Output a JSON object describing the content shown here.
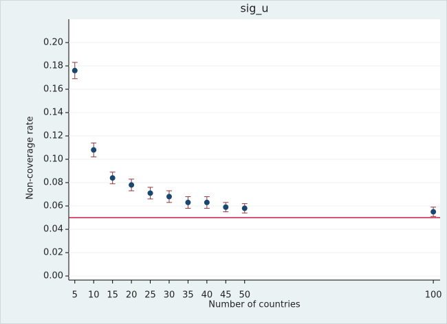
{
  "chart_data": {
    "type": "errorbar-scatter",
    "title": "sig_u",
    "x_label": "Number of countries",
    "y_label": "Non-coverage rate",
    "series": [
      {
        "color": "#1a476f",
        "error_color": "#90353b",
        "x": [
          5,
          10,
          15,
          20,
          25,
          30,
          35,
          40,
          45,
          50,
          100
        ],
        "values": [
          0.176,
          0.108,
          0.084,
          0.078,
          0.071,
          0.068,
          0.063,
          0.063,
          0.059,
          0.058,
          0.055
        ],
        "errors": [
          0.007,
          0.006,
          0.005,
          0.005,
          0.005,
          0.005,
          0.005,
          0.005,
          0.004,
          0.004,
          0.004
        ]
      }
    ],
    "reference_line": {
      "value": 0.05,
      "color": "#c10534"
    },
    "xlim": [
      3.4,
      101.8
    ],
    "xticks": [
      5,
      10,
      15,
      20,
      25,
      30,
      35,
      40,
      45,
      50,
      100
    ],
    "ylim": [
      -0.0035,
      0.22
    ],
    "yticks": [
      {
        "value": 0,
        "label": "0.00"
      },
      {
        "value": 0.02,
        "label": "0.02"
      },
      {
        "value": 0.04,
        "label": "0.04"
      },
      {
        "value": 0.06,
        "label": "0.06"
      },
      {
        "value": 0.08,
        "label": "0.08"
      },
      {
        "value": 0.1,
        "label": "0.10"
      },
      {
        "value": 0.12,
        "label": "0.12"
      },
      {
        "value": 0.14,
        "label": "0.14"
      },
      {
        "value": 0.16,
        "label": "0.16"
      },
      {
        "value": 0.18,
        "label": "0.18"
      },
      {
        "value": 0.2,
        "label": "0.20"
      }
    ],
    "grid": true
  }
}
